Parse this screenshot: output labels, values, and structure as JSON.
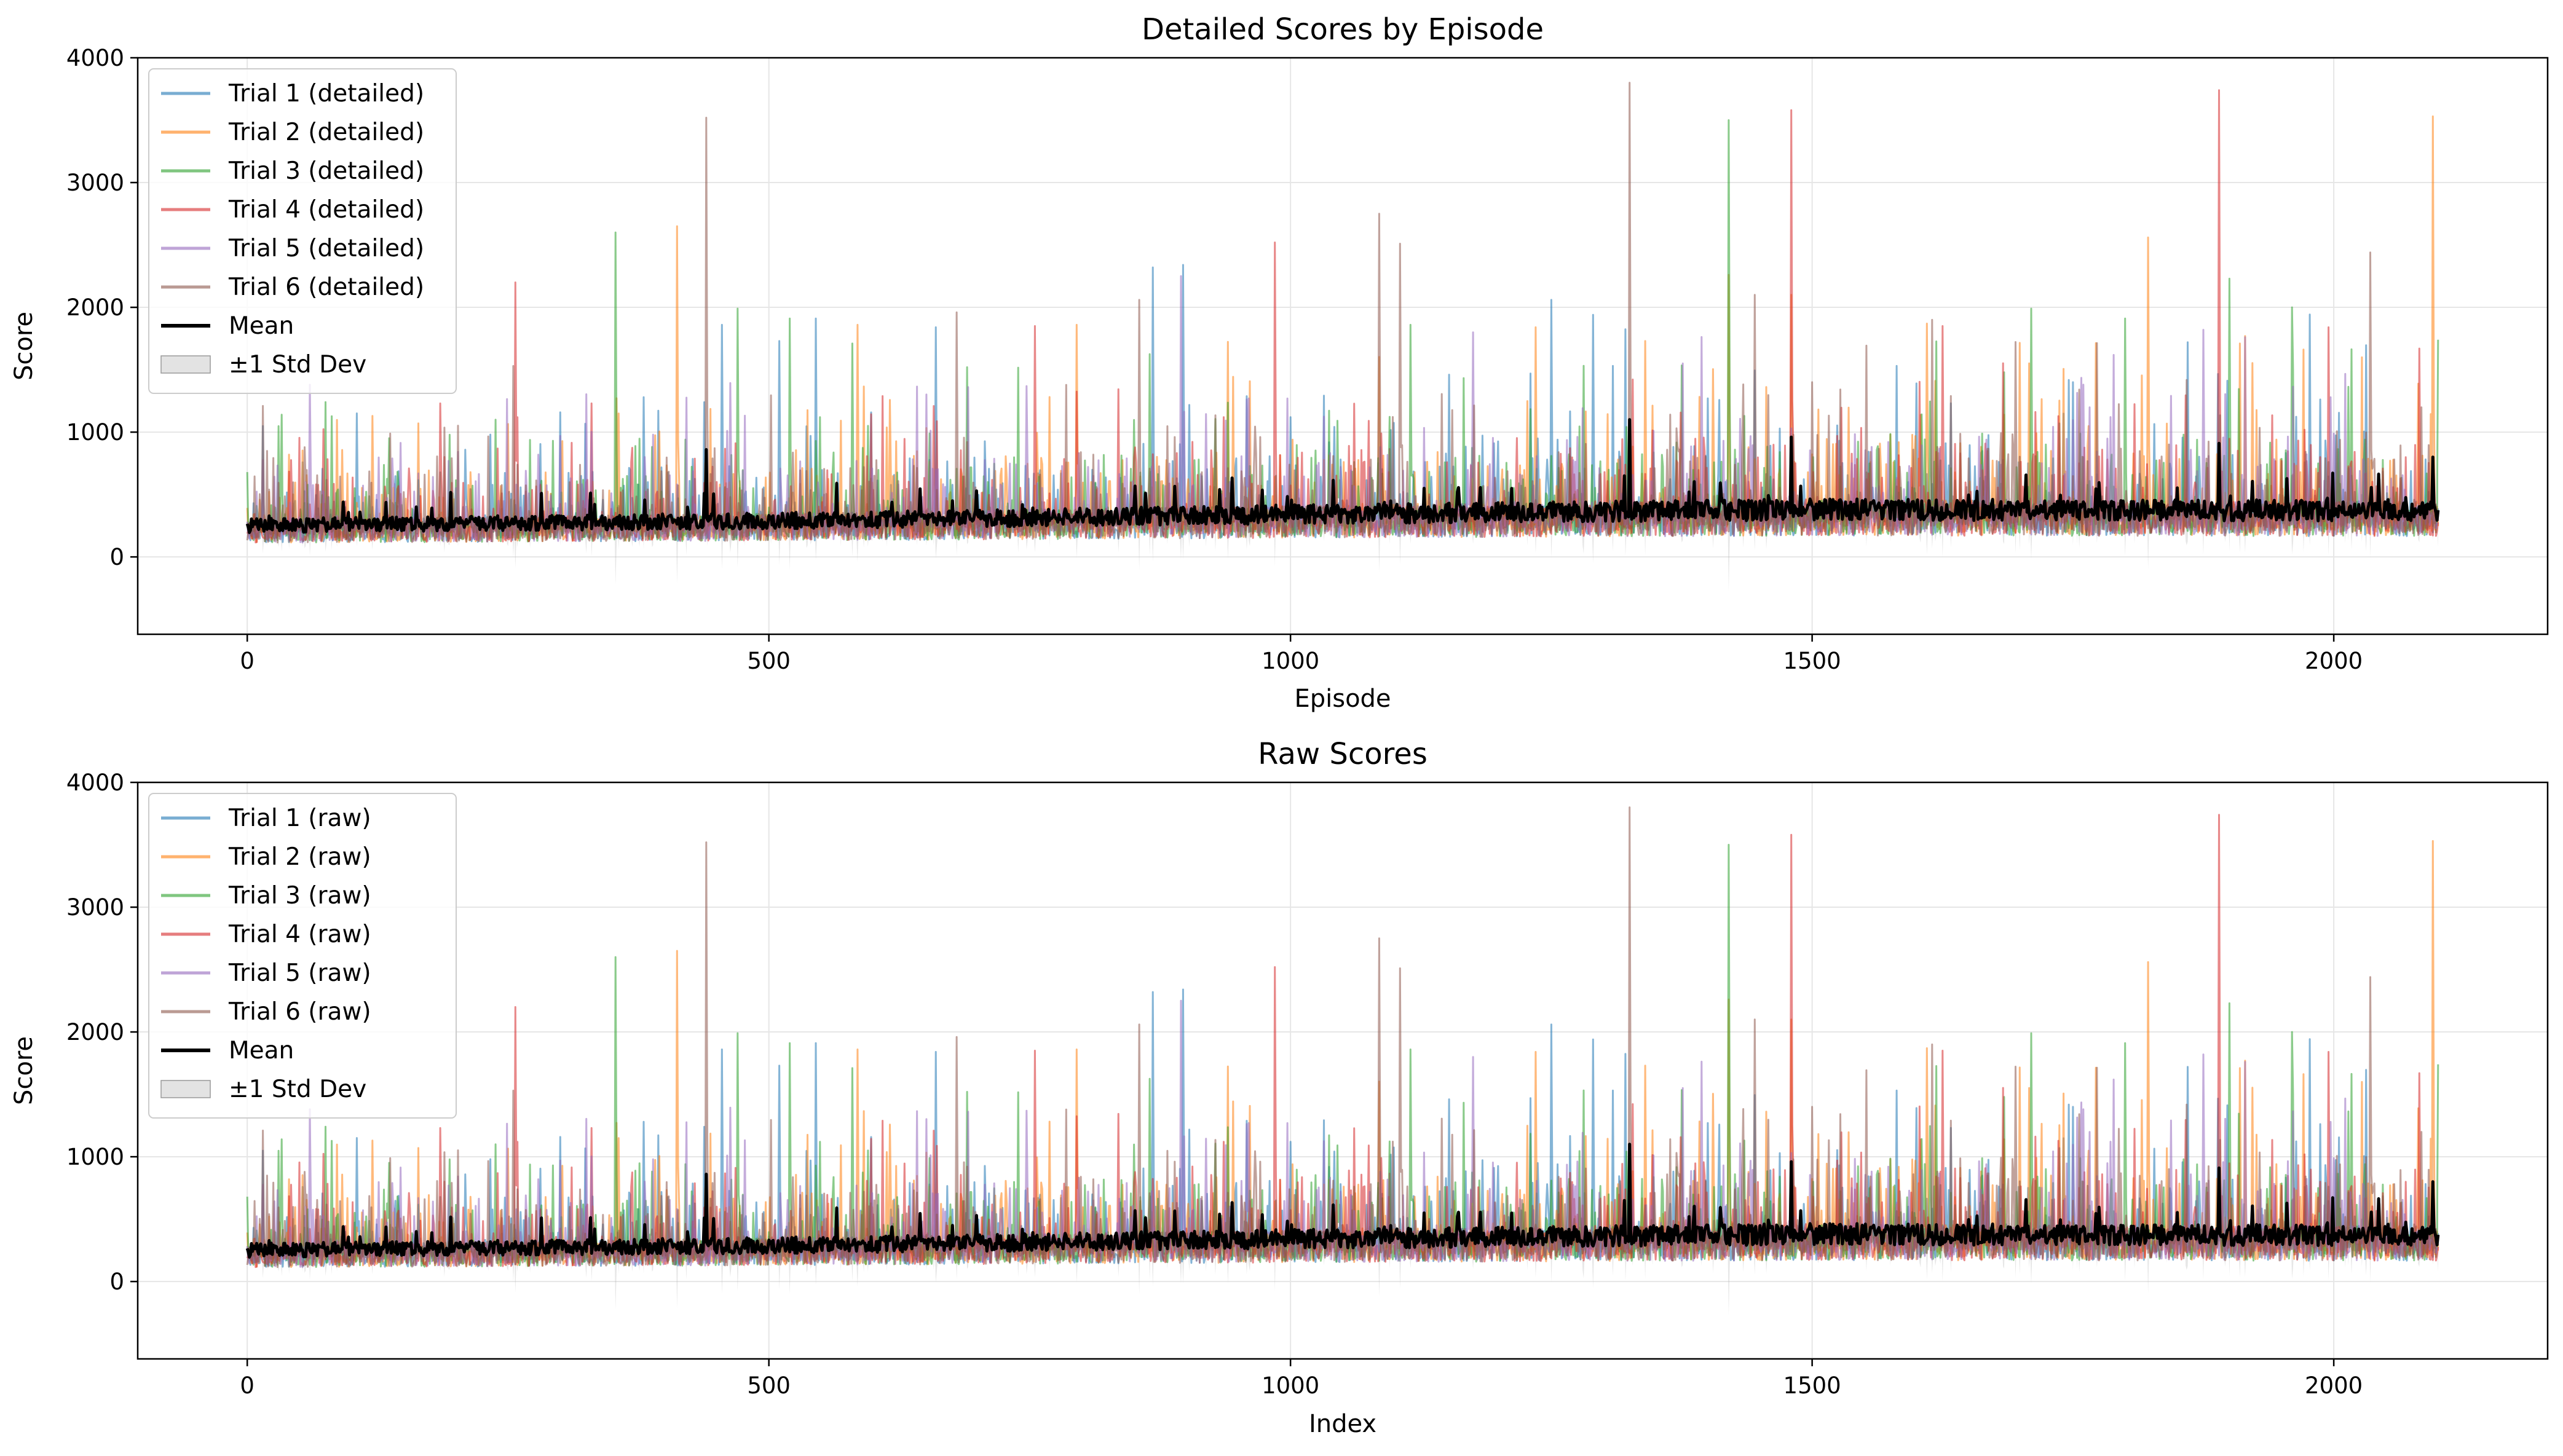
{
  "chart_data": [
    {
      "type": "line",
      "title": "Detailed Scores by Episode",
      "xlabel": "Episode",
      "ylabel": "Score",
      "xlim": [
        -105,
        2205
      ],
      "ylim": [
        -620,
        4000
      ],
      "xticks": [
        0,
        500,
        1000,
        1500,
        2000
      ],
      "yticks": [
        0,
        1000,
        2000,
        3000,
        4000
      ],
      "grid": true,
      "legend_position": "upper-left",
      "n_points": 2101,
      "series": [
        {
          "name": "Trial 1 (detailed)",
          "color": "#1f77b4",
          "baseline": [
            [
              0,
              250
            ],
            [
              500,
              290
            ],
            [
              1000,
              340
            ],
            [
              1500,
              380
            ],
            [
              2100,
              370
            ]
          ],
          "peaks": [
            [
              105,
              1150
            ],
            [
              380,
              1280
            ],
            [
              455,
              1860
            ],
            [
              510,
              1730
            ],
            [
              545,
              1910
            ],
            [
              660,
              1840
            ],
            [
              868,
              2320
            ],
            [
              897,
              2340
            ],
            [
              1000,
              1120
            ],
            [
              1250,
              2060
            ],
            [
              1290,
              1940
            ],
            [
              1400,
              1270
            ],
            [
              1600,
              1390
            ],
            [
              1750,
              1400
            ],
            [
              1860,
              1720
            ]
          ]
        },
        {
          "name": "Trial 2 (detailed)",
          "color": "#ff7f0e",
          "baseline": [
            [
              0,
              250
            ],
            [
              500,
              290
            ],
            [
              1000,
              340
            ],
            [
              1500,
              380
            ],
            [
              2100,
              370
            ]
          ],
          "peaks": [
            [
              120,
              1130
            ],
            [
              412,
              2650
            ],
            [
              585,
              1860
            ],
            [
              795,
              1860
            ],
            [
              1235,
              1840
            ],
            [
              1340,
              1730
            ],
            [
              1420,
              2260
            ],
            [
              1480,
              2100
            ],
            [
              1610,
              1870
            ],
            [
              1822,
              2560
            ],
            [
              1910,
              1710
            ],
            [
              2095,
              3530
            ]
          ]
        },
        {
          "name": "Trial 3 (detailed)",
          "color": "#2ca02c",
          "baseline": [
            [
              0,
              250
            ],
            [
              500,
              290
            ],
            [
              1000,
              340
            ],
            [
              1500,
              380
            ],
            [
              2100,
              370
            ]
          ],
          "peaks": [
            [
              0,
              680
            ],
            [
              353,
              2600
            ],
            [
              470,
              1990
            ],
            [
              520,
              1910
            ],
            [
              580,
              1710
            ],
            [
              690,
              1520
            ],
            [
              1115,
              1860
            ],
            [
              1420,
              3500
            ],
            [
              1710,
              1990
            ],
            [
              1800,
              1910
            ],
            [
              1900,
              2230
            ],
            [
              1960,
              2000
            ],
            [
              2100,
              1740
            ]
          ]
        },
        {
          "name": "Trial 4 (detailed)",
          "color": "#d62728",
          "baseline": [
            [
              0,
              250
            ],
            [
              500,
              290
            ],
            [
              1000,
              340
            ],
            [
              1500,
              380
            ],
            [
              2100,
              370
            ]
          ],
          "peaks": [
            [
              257,
              2200
            ],
            [
              330,
              1230
            ],
            [
              755,
              1850
            ],
            [
              985,
              2520
            ],
            [
              1480,
              3580
            ],
            [
              1625,
              1850
            ],
            [
              1890,
              3740
            ],
            [
              1995,
              1840
            ],
            [
              2082,
              1670
            ]
          ]
        },
        {
          "name": "Trial 5 (detailed)",
          "color": "#9467bd",
          "baseline": [
            [
              0,
              250
            ],
            [
              500,
              290
            ],
            [
              1000,
              340
            ],
            [
              1500,
              380
            ],
            [
              2100,
              370
            ]
          ],
          "peaks": [
            [
              60,
              1380
            ],
            [
              300,
              970
            ],
            [
              460,
              1010
            ],
            [
              895,
              2250
            ],
            [
              960,
              1270
            ],
            [
              1175,
              1800
            ],
            [
              1480,
              1030
            ],
            [
              1760,
              1380
            ],
            [
              1875,
              1820
            ],
            [
              1915,
              1760
            ]
          ]
        },
        {
          "name": "Trial 6 (detailed)",
          "color": "#8c564b",
          "baseline": [
            [
              0,
              250
            ],
            [
              500,
              290
            ],
            [
              1000,
              340
            ],
            [
              1500,
              380
            ],
            [
              2100,
              370
            ]
          ],
          "peaks": [
            [
              15,
              1210
            ],
            [
              255,
              1530
            ],
            [
              440,
              3520
            ],
            [
              680,
              1960
            ],
            [
              855,
              2060
            ],
            [
              1085,
              2750
            ],
            [
              1105,
              2510
            ],
            [
              1325,
              3800
            ],
            [
              1445,
              2100
            ],
            [
              1500,
              1400
            ],
            [
              1615,
              1900
            ],
            [
              2035,
              2440
            ]
          ]
        },
        {
          "name": "Mean",
          "color": "#000000",
          "baseline": [
            [
              0,
              250
            ],
            [
              500,
              290
            ],
            [
              1000,
              340
            ],
            [
              1500,
              380
            ],
            [
              2100,
              370
            ]
          ],
          "peaks": [
            [
              440,
              860
            ],
            [
              1325,
              1100
            ],
            [
              1480,
              960
            ],
            [
              1890,
              910
            ],
            [
              2095,
              800
            ]
          ]
        }
      ],
      "std_band": {
        "name": "±1 Std Dev",
        "color": "#b0b0b0",
        "min_low": -420
      }
    },
    {
      "type": "line",
      "title": "Raw Scores",
      "xlabel": "Index",
      "ylabel": "Score",
      "xlim": [
        -105,
        2205
      ],
      "ylim": [
        -620,
        4000
      ],
      "xticks": [
        0,
        500,
        1000,
        1500,
        2000
      ],
      "yticks": [
        0,
        1000,
        2000,
        3000,
        4000
      ],
      "grid": true,
      "legend_position": "upper-left",
      "n_points": 2101,
      "series": [
        {
          "name": "Trial 1 (raw)",
          "color": "#1f77b4",
          "baseline": [
            [
              0,
              250
            ],
            [
              500,
              290
            ],
            [
              1000,
              340
            ],
            [
              1500,
              380
            ],
            [
              2100,
              370
            ]
          ],
          "peaks": [
            [
              105,
              1150
            ],
            [
              380,
              1280
            ],
            [
              455,
              1860
            ],
            [
              510,
              1730
            ],
            [
              545,
              1910
            ],
            [
              660,
              1840
            ],
            [
              868,
              2320
            ],
            [
              897,
              2340
            ],
            [
              1000,
              1120
            ],
            [
              1250,
              2060
            ],
            [
              1290,
              1940
            ],
            [
              1400,
              1270
            ],
            [
              1600,
              1390
            ],
            [
              1750,
              1400
            ],
            [
              1860,
              1720
            ]
          ]
        },
        {
          "name": "Trial 2 (raw)",
          "color": "#ff7f0e",
          "baseline": [
            [
              0,
              250
            ],
            [
              500,
              290
            ],
            [
              1000,
              340
            ],
            [
              1500,
              380
            ],
            [
              2100,
              370
            ]
          ],
          "peaks": [
            [
              120,
              1130
            ],
            [
              412,
              2650
            ],
            [
              585,
              1860
            ],
            [
              795,
              1860
            ],
            [
              1235,
              1840
            ],
            [
              1340,
              1730
            ],
            [
              1420,
              2260
            ],
            [
              1480,
              2100
            ],
            [
              1610,
              1870
            ],
            [
              1822,
              2560
            ],
            [
              1910,
              1710
            ],
            [
              2095,
              3530
            ]
          ]
        },
        {
          "name": "Trial 3 (raw)",
          "color": "#2ca02c",
          "baseline": [
            [
              0,
              250
            ],
            [
              500,
              290
            ],
            [
              1000,
              340
            ],
            [
              1500,
              380
            ],
            [
              2100,
              370
            ]
          ],
          "peaks": [
            [
              0,
              680
            ],
            [
              353,
              2600
            ],
            [
              470,
              1990
            ],
            [
              520,
              1910
            ],
            [
              580,
              1710
            ],
            [
              690,
              1520
            ],
            [
              1115,
              1860
            ],
            [
              1420,
              3500
            ],
            [
              1710,
              1990
            ],
            [
              1800,
              1910
            ],
            [
              1900,
              2230
            ],
            [
              1960,
              2000
            ],
            [
              2100,
              1740
            ]
          ]
        },
        {
          "name": "Trial 4 (raw)",
          "color": "#d62728",
          "baseline": [
            [
              0,
              250
            ],
            [
              500,
              290
            ],
            [
              1000,
              340
            ],
            [
              1500,
              380
            ],
            [
              2100,
              370
            ]
          ],
          "peaks": [
            [
              257,
              2200
            ],
            [
              330,
              1230
            ],
            [
              755,
              1850
            ],
            [
              985,
              2520
            ],
            [
              1480,
              3580
            ],
            [
              1625,
              1850
            ],
            [
              1890,
              3740
            ],
            [
              1995,
              1840
            ],
            [
              2082,
              1670
            ]
          ]
        },
        {
          "name": "Trial 5 (raw)",
          "color": "#9467bd",
          "baseline": [
            [
              0,
              250
            ],
            [
              500,
              290
            ],
            [
              1000,
              340
            ],
            [
              1500,
              380
            ],
            [
              2100,
              370
            ]
          ],
          "peaks": [
            [
              60,
              1380
            ],
            [
              300,
              970
            ],
            [
              460,
              1010
            ],
            [
              895,
              2250
            ],
            [
              960,
              1270
            ],
            [
              1175,
              1800
            ],
            [
              1480,
              1030
            ],
            [
              1760,
              1380
            ],
            [
              1875,
              1820
            ],
            [
              1915,
              1760
            ]
          ]
        },
        {
          "name": "Trial 6 (raw)",
          "color": "#8c564b",
          "baseline": [
            [
              0,
              250
            ],
            [
              500,
              290
            ],
            [
              1000,
              340
            ],
            [
              1500,
              380
            ],
            [
              2100,
              370
            ]
          ],
          "peaks": [
            [
              15,
              1210
            ],
            [
              255,
              1530
            ],
            [
              440,
              3520
            ],
            [
              680,
              1960
            ],
            [
              855,
              2060
            ],
            [
              1085,
              2750
            ],
            [
              1105,
              2510
            ],
            [
              1325,
              3800
            ],
            [
              1445,
              2100
            ],
            [
              1500,
              1400
            ],
            [
              1615,
              1900
            ],
            [
              2035,
              2440
            ]
          ]
        },
        {
          "name": "Mean",
          "color": "#000000",
          "baseline": [
            [
              0,
              250
            ],
            [
              500,
              290
            ],
            [
              1000,
              340
            ],
            [
              1500,
              380
            ],
            [
              2100,
              370
            ]
          ],
          "peaks": [
            [
              440,
              860
            ],
            [
              1325,
              1100
            ],
            [
              1480,
              960
            ],
            [
              1890,
              910
            ],
            [
              2095,
              800
            ]
          ]
        }
      ],
      "std_band": {
        "name": "±1 Std Dev",
        "color": "#b0b0b0",
        "min_low": -420
      }
    }
  ]
}
